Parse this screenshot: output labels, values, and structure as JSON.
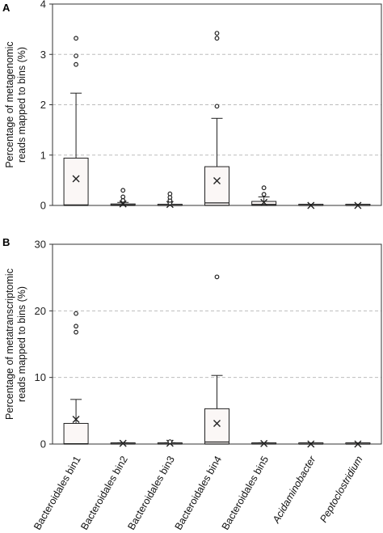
{
  "chart_data": [
    {
      "type": "box",
      "panel": "A",
      "ylabel_lines": [
        "Percentage of metagenomic",
        "reads mapped to bins (%)"
      ],
      "ylim": [
        0,
        4
      ],
      "yticks": [
        0,
        1,
        2,
        3,
        4
      ],
      "grid": "dashed horizontal",
      "categories": [
        "Bacteroidales bin1",
        "Bacteroidales bin2",
        "Bacteroidales bin3",
        "Bacteroidales bin4",
        "Bacteroidales bin5",
        "Acidaminobacter",
        "Peptoclostridium"
      ],
      "italic_categories": [
        false,
        false,
        false,
        false,
        false,
        true,
        true
      ],
      "boxes": [
        {
          "q1": 0,
          "median": 0.01,
          "q3": 0.94,
          "whisker_low": 0,
          "whisker_high": 2.23,
          "mean": 0.53,
          "outliers": [
            2.8,
            2.97,
            3.32
          ]
        },
        {
          "q1": 0,
          "median": 0.01,
          "q3": 0.03,
          "whisker_low": 0,
          "whisker_high": 0.06,
          "mean": 0.03,
          "outliers": [
            0.1,
            0.17,
            0.3
          ]
        },
        {
          "q1": 0,
          "median": 0,
          "q3": 0.01,
          "whisker_low": 0,
          "whisker_high": 0.02,
          "mean": 0.02,
          "outliers": [
            0.05,
            0.1,
            0.16,
            0.23
          ]
        },
        {
          "q1": 0,
          "median": 0.05,
          "q3": 0.77,
          "whisker_low": 0,
          "whisker_high": 1.73,
          "mean": 0.49,
          "outliers": [
            1.97,
            3.32,
            3.42
          ]
        },
        {
          "q1": 0,
          "median": 0.02,
          "q3": 0.08,
          "whisker_low": 0,
          "whisker_high": 0.17,
          "mean": 0.06,
          "outliers": [
            0.22,
            0.35
          ]
        },
        {
          "q1": 0,
          "median": 0,
          "q3": 0,
          "whisker_low": 0,
          "whisker_high": 0,
          "mean": 0,
          "outliers": []
        },
        {
          "q1": 0,
          "median": 0,
          "q3": 0,
          "whisker_low": 0,
          "whisker_high": 0,
          "mean": 0,
          "outliers": []
        }
      ]
    },
    {
      "type": "box",
      "panel": "B",
      "ylabel_lines": [
        "Percentage of metatranscriptomic",
        "reads mapped to bins (%)"
      ],
      "ylim": [
        0,
        30
      ],
      "yticks": [
        0,
        10,
        20,
        30
      ],
      "grid": "dashed horizontal",
      "categories": [
        "Bacteroidales bin1",
        "Bacteroidales bin2",
        "Bacteroidales bin3",
        "Bacteroidales bin4",
        "Bacteroidales bin5",
        "Acidaminobacter",
        "Peptoclostridium"
      ],
      "italic_categories": [
        false,
        false,
        false,
        false,
        false,
        true,
        true
      ],
      "boxes": [
        {
          "q1": 0,
          "median": 0.05,
          "q3": 3.1,
          "whisker_low": 0,
          "whisker_high": 6.7,
          "mean": 3.7,
          "outliers": [
            16.8,
            17.7,
            19.6
          ]
        },
        {
          "q1": 0,
          "median": 0.02,
          "q3": 0.1,
          "whisker_low": 0,
          "whisker_high": 0.2,
          "mean": 0.1,
          "outliers": []
        },
        {
          "q1": 0,
          "median": 0.02,
          "q3": 0.1,
          "whisker_low": 0,
          "whisker_high": 0.2,
          "mean": 0.12,
          "outliers": [
            0.35
          ]
        },
        {
          "q1": 0,
          "median": 0.3,
          "q3": 5.3,
          "whisker_low": 0,
          "whisker_high": 10.3,
          "mean": 3.1,
          "outliers": [
            25.1
          ]
        },
        {
          "q1": 0,
          "median": 0.02,
          "q3": 0.1,
          "whisker_low": 0,
          "whisker_high": 0.2,
          "mean": 0.08,
          "outliers": []
        },
        {
          "q1": 0,
          "median": 0,
          "q3": 0,
          "whisker_low": 0,
          "whisker_high": 0,
          "mean": 0,
          "outliers": []
        },
        {
          "q1": 0,
          "median": 0,
          "q3": 0,
          "whisker_low": 0,
          "whisker_high": 0,
          "mean": 0,
          "outliers": []
        }
      ]
    }
  ]
}
